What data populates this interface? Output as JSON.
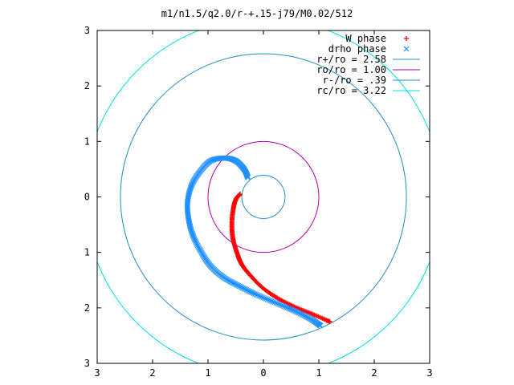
{
  "chart_data": {
    "type": "scatter",
    "title": "m1/n1.5/q2.0/r-+.15-j79/M0.02/512",
    "xlim": [
      -3,
      3
    ],
    "ylim": [
      -3,
      3
    ],
    "xticks": [
      -3,
      -2,
      -1,
      0,
      1,
      2,
      3
    ],
    "yticks": [
      -3,
      -2,
      -1,
      0,
      1,
      2,
      3
    ],
    "xtick_labels": [
      "3",
      "2",
      "1",
      "0",
      "1",
      "2",
      "3"
    ],
    "ytick_labels": [
      "3",
      "2",
      "1",
      "0",
      "1",
      "2",
      "3"
    ],
    "grid": false,
    "legend_position": "top-right",
    "series": [
      {
        "name": "W phase",
        "marker": "+",
        "color": "#ff0000",
        "anchors": [
          [
            -0.42,
            0.05
          ],
          [
            -0.5,
            -0.05
          ],
          [
            -0.55,
            -0.25
          ],
          [
            -0.57,
            -0.5
          ],
          [
            -0.55,
            -0.75
          ],
          [
            -0.48,
            -1.0
          ],
          [
            -0.4,
            -1.2
          ],
          [
            -0.25,
            -1.4
          ],
          [
            0.0,
            -1.65
          ],
          [
            0.3,
            -1.85
          ],
          [
            0.6,
            -2.0
          ],
          [
            0.9,
            -2.12
          ],
          [
            1.2,
            -2.25
          ]
        ]
      },
      {
        "name": "drho phase",
        "marker": "x",
        "color": "#1e90ff",
        "anchors": [
          [
            -0.28,
            0.35
          ],
          [
            -0.35,
            0.5
          ],
          [
            -0.5,
            0.65
          ],
          [
            -0.7,
            0.7
          ],
          [
            -0.95,
            0.65
          ],
          [
            -1.15,
            0.45
          ],
          [
            -1.3,
            0.2
          ],
          [
            -1.37,
            -0.1
          ],
          [
            -1.35,
            -0.4
          ],
          [
            -1.27,
            -0.7
          ],
          [
            -1.12,
            -1.0
          ],
          [
            -0.95,
            -1.25
          ],
          [
            -0.72,
            -1.45
          ],
          [
            -0.45,
            -1.6
          ],
          [
            -0.15,
            -1.75
          ],
          [
            0.2,
            -1.9
          ],
          [
            0.55,
            -2.05
          ],
          [
            0.85,
            -2.2
          ],
          [
            1.03,
            -2.32
          ]
        ]
      },
      {
        "name": "r+/ro = 2.58",
        "type": "circle",
        "radius": 2.58,
        "color": "#1a8fc8"
      },
      {
        "name": "ro/ro = 1.00",
        "type": "circle",
        "radius": 1.0,
        "color": "#b400b4"
      },
      {
        "name": "r-/ro = .39",
        "type": "circle",
        "radius": 0.39,
        "color": "#1a8fc8"
      },
      {
        "name": "rc/ro = 3.22",
        "type": "circle",
        "radius": 3.22,
        "color": "#00e0e0"
      }
    ]
  }
}
